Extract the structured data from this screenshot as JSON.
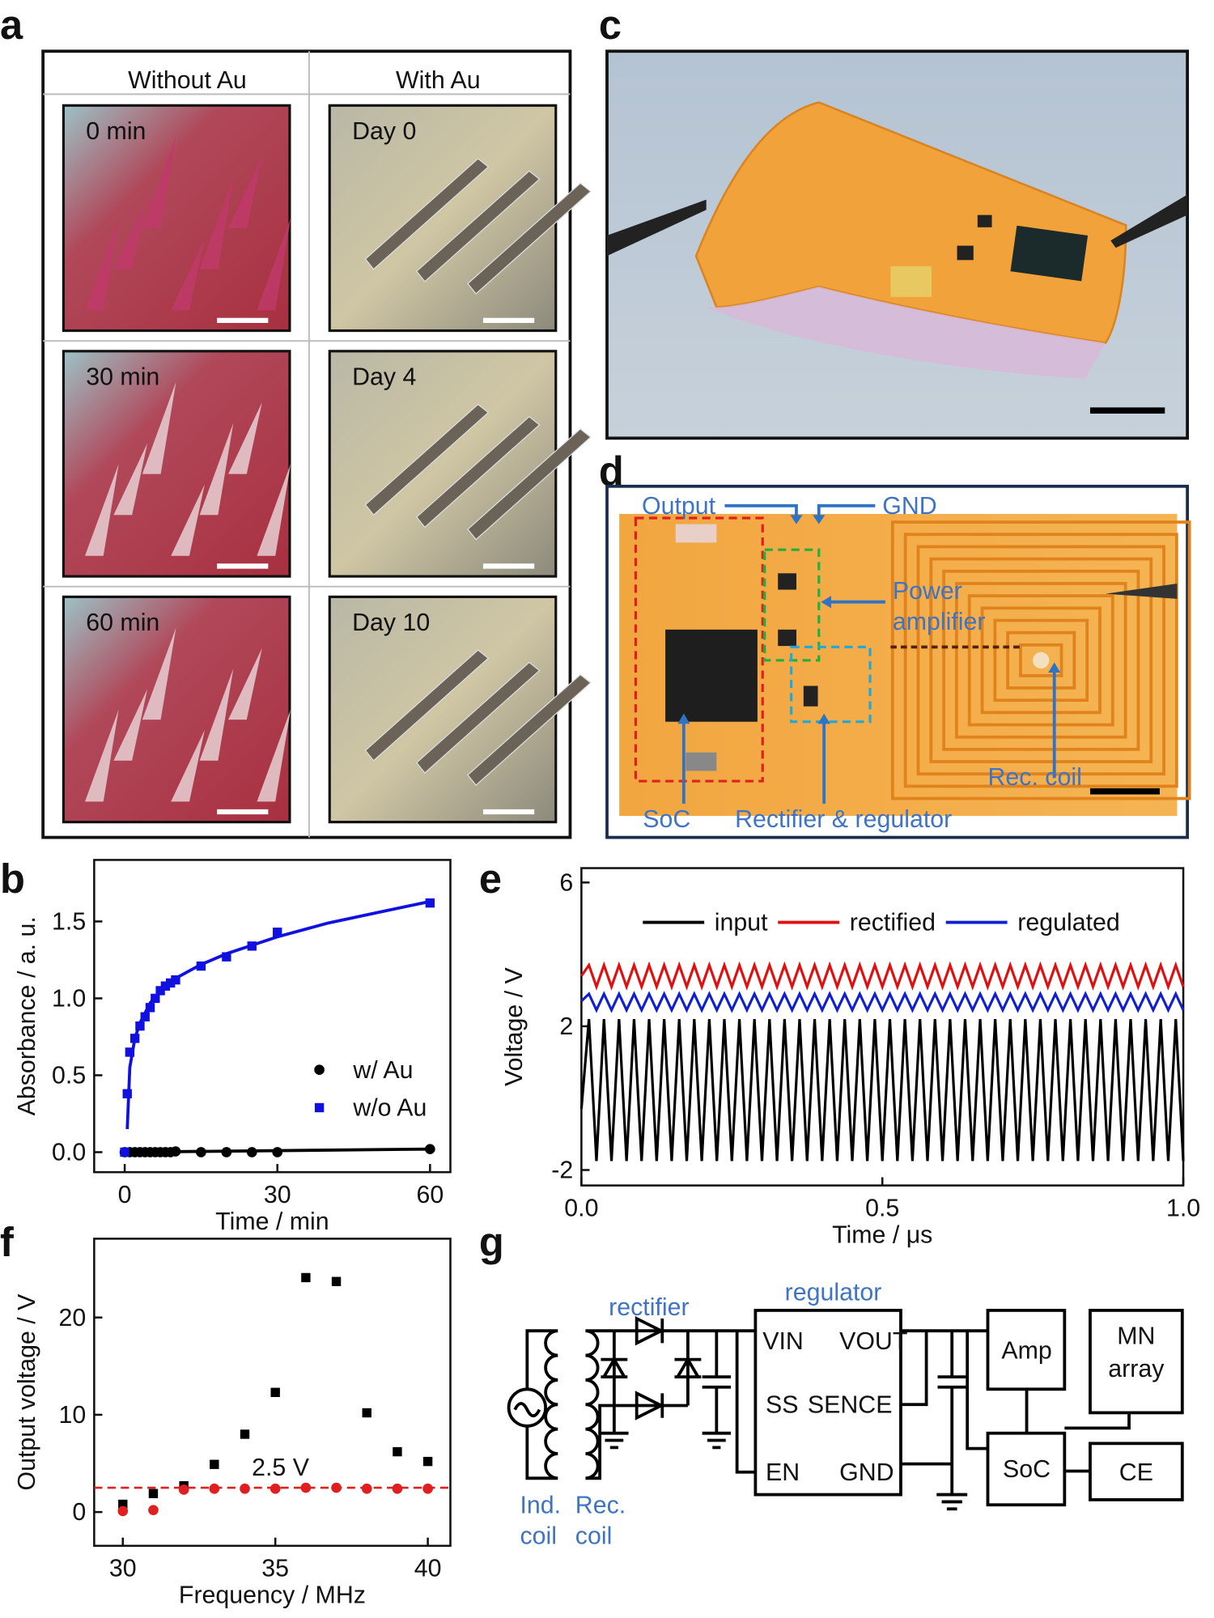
{
  "panel_labels": [
    "a",
    "b",
    "c",
    "d",
    "e",
    "f",
    "g"
  ],
  "panel_a": {
    "columns": [
      "Without Au",
      "With Au"
    ],
    "rows": [
      [
        "0 min",
        "Day 0"
      ],
      [
        "30 min",
        "Day 4"
      ],
      [
        "60 min",
        "Day 10"
      ]
    ]
  },
  "panel_d": {
    "output": "Output",
    "gnd": "GND",
    "power_amplifier": [
      "Power",
      "amplifier"
    ],
    "rec_coil": "Rec. coil",
    "soc": "SoC",
    "rectifier_regulator": "Rectifier & regulator"
  },
  "panel_g": {
    "rectifier": "rectifier",
    "regulator": "regulator",
    "pins": [
      "VIN",
      "VOUT",
      "SS",
      "SENCE",
      "EN",
      "GND"
    ],
    "amp": "Amp",
    "mn_array": [
      "MN",
      "array"
    ],
    "soc": "SoC",
    "ce": "CE",
    "ind_coil": [
      "Ind.",
      "coil"
    ],
    "rec_coil": [
      "Rec.",
      "coil"
    ]
  },
  "chart_data": [
    {
      "type": "scatter",
      "xlabel": "Time / min",
      "ylabel": "Absorbance / a. u.",
      "xlim": [
        -6,
        64
      ],
      "ylim": [
        -0.13,
        1.9
      ],
      "xticks": [
        0,
        30,
        60
      ],
      "yticks": [
        {
          "value": 0,
          "label": "0.0"
        },
        0.5,
        {
          "value": 1,
          "label": "1.0"
        },
        1.5
      ],
      "legend": "lower right",
      "series": [
        {
          "name": "w/ Au",
          "color": "#000000",
          "marker": "circle",
          "x": [
            0,
            1,
            2,
            3,
            4,
            5,
            6,
            7,
            8,
            9,
            10,
            15,
            20,
            25,
            30,
            60
          ],
          "values": [
            0,
            0,
            0,
            0,
            0,
            0,
            0,
            0,
            0,
            0,
            0.005,
            0,
            0,
            0,
            0,
            0.02
          ],
          "fit": {
            "x": [
              0,
              60
            ],
            "values": [
              0,
              0.02
            ]
          }
        },
        {
          "name": "w/o Au",
          "color": "#1010e0",
          "marker": "square",
          "x": [
            0,
            0.5,
            1,
            2,
            3,
            4,
            5,
            6,
            7,
            8,
            9,
            10,
            15,
            20,
            25,
            30,
            60
          ],
          "values": [
            0,
            0.38,
            0.65,
            0.74,
            0.82,
            0.88,
            0.94,
            1.0,
            1.05,
            1.08,
            1.1,
            1.12,
            1.21,
            1.27,
            1.34,
            1.43,
            1.62
          ],
          "fit": {
            "x": [
              0.5,
              1,
              2,
              3,
              5,
              7,
              10,
              15,
              20,
              30,
              40,
              50,
              60
            ],
            "values": [
              0.15,
              0.55,
              0.74,
              0.84,
              0.97,
              1.05,
              1.13,
              1.22,
              1.29,
              1.4,
              1.49,
              1.56,
              1.63
            ]
          }
        }
      ]
    },
    {
      "type": "line",
      "xlabel": "Time / μs",
      "ylabel": "Voltage / V",
      "xlim": [
        0,
        1
      ],
      "ylim": [
        -2.43,
        6.4
      ],
      "xticks": [
        {
          "value": 0,
          "label": "0.0"
        },
        0.5,
        {
          "value": 1,
          "label": "1.0"
        }
      ],
      "yticks": [
        -2,
        2,
        6
      ],
      "legend": "upper center",
      "x": [
        0,
        0.0125,
        0.025,
        0.0375,
        0.05,
        0.0625,
        0.075,
        0.0875,
        0.1,
        0.1125,
        0.125,
        0.1375,
        0.15,
        0.1625,
        0.175,
        0.1875,
        0.2,
        0.2125,
        0.225,
        0.2375,
        0.25,
        0.2625,
        0.275,
        0.2875,
        0.3,
        0.3125,
        0.325,
        0.3375,
        0.35,
        0.3625,
        0.375,
        0.3875,
        0.4,
        0.4125,
        0.425,
        0.4375,
        0.45,
        0.4625,
        0.475,
        0.4875,
        0.5,
        0.5125,
        0.525,
        0.5375,
        0.55,
        0.5625,
        0.575,
        0.5875,
        0.6,
        0.6125,
        0.625,
        0.6375,
        0.65,
        0.6625,
        0.675,
        0.6875,
        0.7,
        0.7125,
        0.725,
        0.7375,
        0.75,
        0.7625,
        0.775,
        0.7875,
        0.8,
        0.8125,
        0.825,
        0.8375,
        0.85,
        0.8625,
        0.875,
        0.8875,
        0.9,
        0.9125,
        0.925,
        0.9375,
        0.95,
        0.9625,
        0.975,
        0.9875,
        1
      ],
      "series": [
        {
          "name": "input",
          "color": "#000000",
          "values": [
            -0.3,
            2.2,
            -1.75,
            2.2,
            -1.75,
            2.2,
            -1.75,
            2.2,
            -1.75,
            2.2,
            -1.75,
            2.2,
            -1.75,
            2.2,
            -1.75,
            2.2,
            -1.75,
            2.2,
            -1.75,
            2.2,
            -1.75,
            2.2,
            -1.75,
            2.2,
            -1.75,
            2.2,
            -1.75,
            2.2,
            -1.75,
            2.2,
            -1.75,
            2.2,
            -1.75,
            2.2,
            -1.75,
            2.2,
            -1.75,
            2.2,
            -1.75,
            2.2,
            -1.75,
            2.2,
            -1.75,
            2.2,
            -1.75,
            2.2,
            -1.75,
            2.2,
            -1.75,
            2.2,
            -1.75,
            2.2,
            -1.75,
            2.2,
            -1.75,
            2.2,
            -1.75,
            2.2,
            -1.75,
            2.2,
            -1.75,
            2.2,
            -1.75,
            2.2,
            -1.75,
            2.2,
            -1.75,
            2.2,
            -1.75,
            2.2,
            -1.75,
            2.2,
            -1.75,
            2.2,
            -1.75,
            2.2,
            -1.75,
            2.2,
            -1.75,
            2.2,
            -1.75
          ]
        },
        {
          "name": "rectified",
          "color": "#e01010",
          "values": [
            3.4,
            3.7,
            3.1,
            3.7,
            3.1,
            3.7,
            3.1,
            3.7,
            3.1,
            3.7,
            3.1,
            3.7,
            3.1,
            3.7,
            3.1,
            3.7,
            3.1,
            3.7,
            3.1,
            3.7,
            3.1,
            3.7,
            3.1,
            3.7,
            3.1,
            3.7,
            3.1,
            3.7,
            3.1,
            3.7,
            3.1,
            3.7,
            3.1,
            3.7,
            3.1,
            3.7,
            3.1,
            3.7,
            3.1,
            3.7,
            3.1,
            3.7,
            3.1,
            3.7,
            3.1,
            3.7,
            3.1,
            3.7,
            3.1,
            3.7,
            3.1,
            3.7,
            3.1,
            3.7,
            3.1,
            3.7,
            3.1,
            3.7,
            3.1,
            3.7,
            3.1,
            3.7,
            3.1,
            3.7,
            3.1,
            3.7,
            3.1,
            3.7,
            3.1,
            3.7,
            3.1,
            3.7,
            3.1,
            3.7,
            3.1,
            3.7,
            3.1,
            3.7,
            3.1,
            3.7,
            3.1
          ]
        },
        {
          "name": "regulated",
          "color": "#1020d0",
          "values": [
            2.7,
            2.9,
            2.45,
            2.9,
            2.45,
            2.9,
            2.45,
            2.9,
            2.45,
            2.9,
            2.45,
            2.9,
            2.45,
            2.9,
            2.45,
            2.9,
            2.45,
            2.9,
            2.45,
            2.9,
            2.45,
            2.9,
            2.45,
            2.9,
            2.45,
            2.9,
            2.45,
            2.9,
            2.45,
            2.9,
            2.45,
            2.9,
            2.45,
            2.9,
            2.45,
            2.9,
            2.45,
            2.9,
            2.45,
            2.9,
            2.45,
            2.9,
            2.45,
            2.9,
            2.45,
            2.9,
            2.45,
            2.9,
            2.45,
            2.9,
            2.45,
            2.9,
            2.45,
            2.9,
            2.45,
            2.9,
            2.45,
            2.9,
            2.45,
            2.9,
            2.45,
            2.9,
            2.45,
            2.9,
            2.45,
            2.9,
            2.45,
            2.9,
            2.45,
            2.9,
            2.45,
            2.9,
            2.45,
            2.9,
            2.45,
            2.9,
            2.45,
            2.9,
            2.45,
            2.9,
            2.45
          ]
        }
      ]
    },
    {
      "type": "scatter",
      "xlabel": "Frequency / MHz",
      "ylabel": "Output voltage / V",
      "xlim": [
        29.06,
        40.74
      ],
      "ylim": [
        -3.47,
        28.1
      ],
      "xticks": [
        30,
        35,
        40
      ],
      "yticks": [
        0,
        10,
        20
      ],
      "series": [
        {
          "color": "#000000",
          "marker": "square",
          "x": [
            30,
            31,
            32,
            33,
            34,
            35,
            36,
            37,
            38,
            39,
            40
          ],
          "values": [
            0.8,
            1.9,
            2.7,
            4.9,
            8.0,
            12.3,
            24.1,
            23.7,
            10.2,
            6.2,
            5.2
          ]
        },
        {
          "color": "#e02020",
          "marker": "circle",
          "x": [
            30,
            31,
            32,
            33,
            34,
            35,
            36,
            37,
            38,
            39,
            40
          ],
          "values": [
            0.1,
            0.2,
            2.3,
            2.4,
            2.4,
            2.4,
            2.5,
            2.5,
            2.4,
            2.4,
            2.4
          ]
        }
      ],
      "reference_line": {
        "value": 2.5,
        "label": "2.5 V",
        "color": "#e02020"
      }
    }
  ]
}
